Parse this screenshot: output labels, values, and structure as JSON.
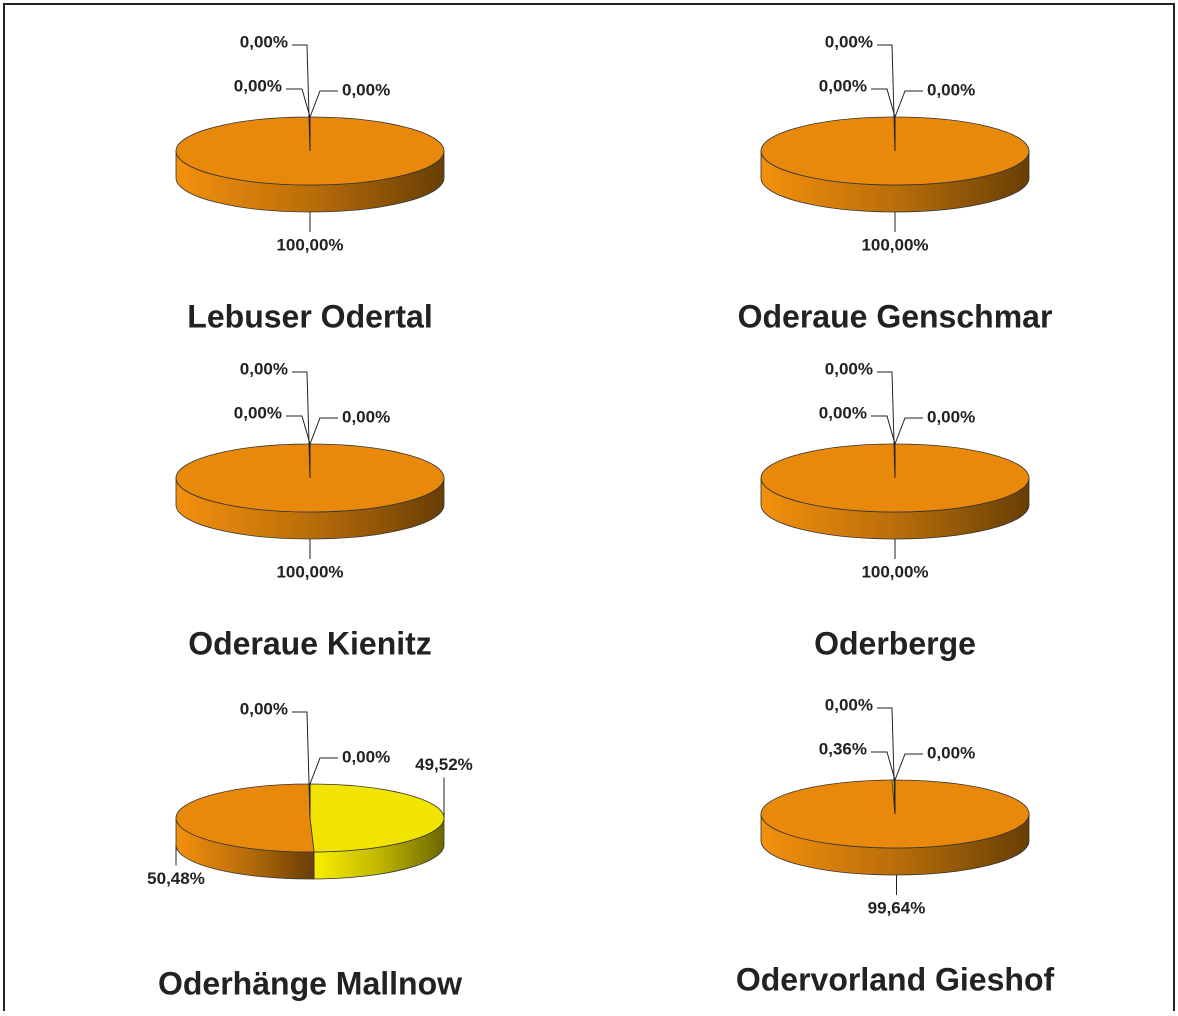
{
  "chart_data": [
    {
      "type": "pie",
      "title": "Lebuser Odertal",
      "values": [
        0,
        0,
        100,
        0
      ],
      "value_labels": [
        "0,00%",
        "0,00%",
        "100,00%",
        "0,00%"
      ],
      "colors": [
        "#3a6fb0",
        "#f0e400",
        "#e8890c",
        "#8fb040"
      ]
    },
    {
      "type": "pie",
      "title": "Oderaue Genschmar",
      "values": [
        0,
        0,
        100,
        0
      ],
      "value_labels": [
        "0,00%",
        "0,00%",
        "100,00%",
        "0,00%"
      ],
      "colors": [
        "#3a6fb0",
        "#f0e400",
        "#e8890c",
        "#8fb040"
      ]
    },
    {
      "type": "pie",
      "title": "Oderaue Kienitz",
      "values": [
        0,
        0,
        100,
        0
      ],
      "value_labels": [
        "0,00%",
        "0,00%",
        "100,00%",
        "0,00%"
      ],
      "colors": [
        "#3a6fb0",
        "#f0e400",
        "#e8890c",
        "#8fb040"
      ]
    },
    {
      "type": "pie",
      "title": "Oderberge",
      "values": [
        0,
        0,
        100,
        0
      ],
      "value_labels": [
        "0,00%",
        "0,00%",
        "100,00%",
        "0,00%"
      ],
      "colors": [
        "#3a6fb0",
        "#f0e400",
        "#e8890c",
        "#8fb040"
      ]
    },
    {
      "type": "pie",
      "title": "Oderhänge Mallnow",
      "values": [
        0,
        0,
        49.52,
        50.48
      ],
      "value_labels": [
        "0,00%",
        "0,00%",
        "49,52%",
        "50,48%"
      ],
      "colors": [
        "#3a6fb0",
        "#8fb040",
        "#f0e400",
        "#e8890c"
      ]
    },
    {
      "type": "pie",
      "title": "Odervorland Gieshof",
      "values": [
        0,
        0,
        99.64,
        0.36
      ],
      "value_labels": [
        "0,00%",
        "0,00%",
        "99,64%",
        "0,36%"
      ],
      "colors": [
        "#3a6fb0",
        "#8fb040",
        "#e8890c",
        "#f0e400"
      ]
    }
  ]
}
